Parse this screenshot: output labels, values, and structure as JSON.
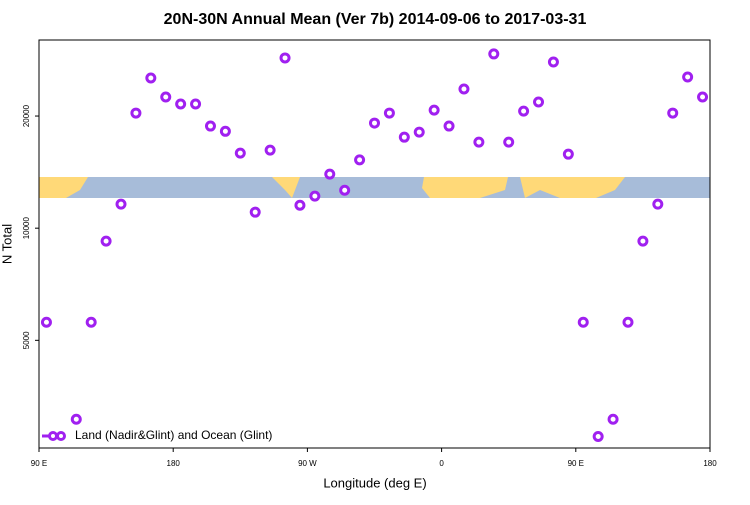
{
  "chart_data": {
    "type": "scatter",
    "title": "20N-30N Annual Mean (Ver 7b)   2014-09-06 to 2017-03-31",
    "x_label": "Longitude (deg E)",
    "y_label": "N Total",
    "series": [
      {
        "name": "Land (Nadir&Glint) and Ocean (Glint)",
        "color": "#a020f0",
        "x": [
          95,
          115,
          125,
          135,
          145,
          155,
          165,
          175,
          185,
          195,
          205,
          215,
          225,
          235,
          245,
          255,
          265,
          275,
          285,
          295,
          305,
          315,
          325,
          335,
          345,
          355,
          365,
          375,
          385,
          395,
          405,
          415,
          425,
          435,
          445,
          455,
          465,
          475,
          485,
          495,
          505,
          515,
          525,
          535
        ],
        "values": [
          5590,
          3070,
          5590,
          9230,
          11600,
          20370,
          25300,
          22500,
          21540,
          21540,
          18800,
          18200,
          15900,
          11040,
          16200,
          28640,
          11520,
          12190,
          13970,
          12640,
          15250,
          19150,
          20370,
          17550,
          18110,
          20750,
          18800,
          23640,
          17020,
          29360,
          17020,
          20620,
          21810,
          27930,
          15800,
          5590,
          2760,
          3070,
          5590,
          9230,
          11600,
          20370,
          25460,
          22500
        ]
      }
    ],
    "xlim": [
      90,
      540
    ],
    "xticks": [
      {
        "value": 90,
        "label": "90 E"
      },
      180,
      {
        "value": 270,
        "label": "90 W"
      },
      {
        "value": 360,
        "label": "0"
      },
      {
        "value": 450,
        "label": "90 E"
      },
      {
        "value": 540,
        "label": "180"
      }
    ],
    "ylim": [
      2570,
      32000
    ],
    "log_y": true,
    "yticks": [
      5000,
      10000,
      20000
    ],
    "legend": "lower-left"
  }
}
